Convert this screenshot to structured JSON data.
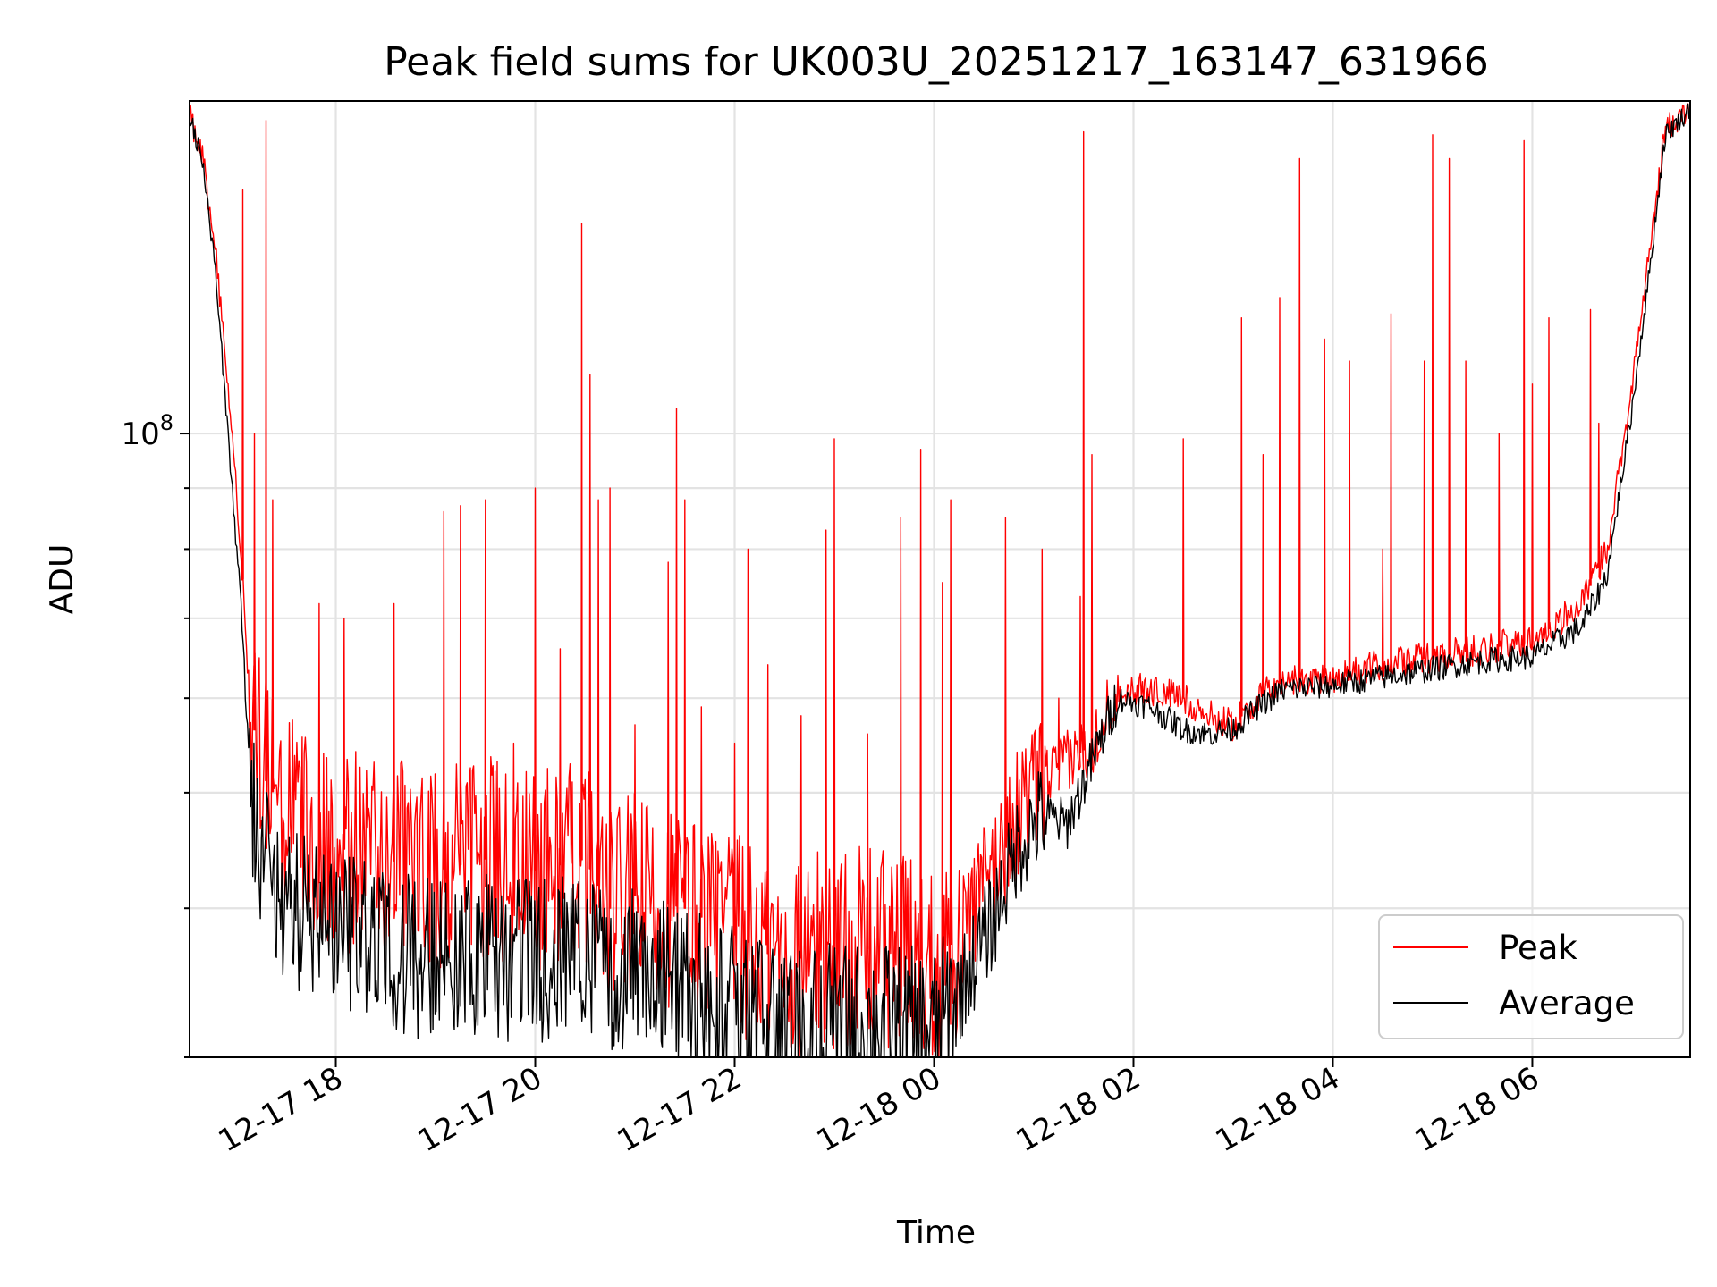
{
  "chart_data": {
    "type": "line",
    "title": "Peak field sums for UK003U_20251217_163147_631966",
    "xlabel": "Time",
    "ylabel": "ADU",
    "y_scale": "log",
    "ylim": [
      30000000,
      190000000
    ],
    "xlim": [
      "2025-12-17 16:32",
      "2025-12-18 07:35"
    ],
    "grid": true,
    "legend": "lower-right",
    "x_ticks": [
      {
        "t": "2025-12-17 18:00",
        "label": "12-17 18"
      },
      {
        "t": "2025-12-17 20:00",
        "label": "12-17 20"
      },
      {
        "t": "2025-12-17 22:00",
        "label": "12-17 22"
      },
      {
        "t": "2025-12-18 00:00",
        "label": "12-18 00"
      },
      {
        "t": "2025-12-18 02:00",
        "label": "12-18 02"
      },
      {
        "t": "2025-12-18 04:00",
        "label": "12-18 04"
      },
      {
        "t": "2025-12-18 06:00",
        "label": "12-18 06"
      }
    ],
    "y_major_ticks": [
      {
        "value": 100000000,
        "base": "10",
        "exp": "8"
      }
    ],
    "y_minor_ticks": [
      30000000,
      40000000,
      50000000,
      60000000,
      70000000,
      80000000,
      90000000,
      200000000
    ],
    "series": [
      {
        "name": "Peak",
        "color": "#ff0000",
        "baseline": [
          [
            "2025-12-17 16:32",
            185000000
          ],
          [
            "2025-12-17 16:40",
            170000000
          ],
          [
            "2025-12-17 16:48",
            140000000
          ],
          [
            "2025-12-17 16:55",
            110000000
          ],
          [
            "2025-12-17 17:03",
            80000000
          ],
          [
            "2025-12-17 17:08",
            60000000
          ],
          [
            "2025-12-17 17:15",
            52000000
          ],
          [
            "2025-12-17 17:30",
            48000000
          ],
          [
            "2025-12-17 18:00",
            45000000
          ],
          [
            "2025-12-17 18:30",
            44000000
          ],
          [
            "2025-12-17 19:00",
            43000000
          ],
          [
            "2025-12-17 19:30",
            44000000
          ],
          [
            "2025-12-17 20:00",
            43000000
          ],
          [
            "2025-12-17 20:30",
            44000000
          ],
          [
            "2025-12-17 20:45",
            40000000
          ],
          [
            "2025-12-17 21:00",
            41000000
          ],
          [
            "2025-12-17 21:30",
            40000000
          ],
          [
            "2025-12-17 22:00",
            38000000
          ],
          [
            "2025-12-17 22:30",
            36000000
          ],
          [
            "2025-12-17 23:00",
            37000000
          ],
          [
            "2025-12-17 23:30",
            37000000
          ],
          [
            "2025-12-18 00:00",
            36000000
          ],
          [
            "2025-12-18 00:15",
            38000000
          ],
          [
            "2025-12-18 00:35",
            43000000
          ],
          [
            "2025-12-18 00:50",
            48000000
          ],
          [
            "2025-12-18 01:05",
            51000000
          ],
          [
            "2025-12-18 01:20",
            53000000
          ],
          [
            "2025-12-18 01:35",
            55000000
          ],
          [
            "2025-12-18 01:50",
            61000000
          ],
          [
            "2025-12-18 02:10",
            61000000
          ],
          [
            "2025-12-18 02:30",
            60000000
          ],
          [
            "2025-12-18 02:45",
            58000000
          ],
          [
            "2025-12-18 03:00",
            57000000
          ],
          [
            "2025-12-18 03:15",
            60000000
          ],
          [
            "2025-12-18 03:30",
            62000000
          ],
          [
            "2025-12-18 04:00",
            62500000
          ],
          [
            "2025-12-18 04:30",
            64000000
          ],
          [
            "2025-12-18 05:00",
            65000000
          ],
          [
            "2025-12-18 05:30",
            66000000
          ],
          [
            "2025-12-18 06:00",
            67000000
          ],
          [
            "2025-12-18 06:30",
            72000000
          ],
          [
            "2025-12-18 06:45",
            80000000
          ],
          [
            "2025-12-18 07:00",
            110000000
          ],
          [
            "2025-12-18 07:10",
            140000000
          ],
          [
            "2025-12-18 07:20",
            180000000
          ],
          [
            "2025-12-18 07:35",
            187000000
          ]
        ],
        "spikes": [
          [
            "2025-12-17 17:04",
            160000000
          ],
          [
            "2025-12-17 17:11",
            100000000
          ],
          [
            "2025-12-17 17:18",
            183000000
          ],
          [
            "2025-12-17 17:22",
            88000000
          ],
          [
            "2025-12-17 17:50",
            72000000
          ],
          [
            "2025-12-17 18:05",
            70000000
          ],
          [
            "2025-12-17 18:35",
            72000000
          ],
          [
            "2025-12-17 19:05",
            86000000
          ],
          [
            "2025-12-17 19:15",
            87000000
          ],
          [
            "2025-12-17 19:30",
            88000000
          ],
          [
            "2025-12-17 19:47",
            55000000
          ],
          [
            "2025-12-17 20:00",
            90000000
          ],
          [
            "2025-12-17 20:15",
            66000000
          ],
          [
            "2025-12-17 20:28",
            150000000
          ],
          [
            "2025-12-17 20:33",
            112000000
          ],
          [
            "2025-12-17 20:38",
            88000000
          ],
          [
            "2025-12-17 20:45",
            90000000
          ],
          [
            "2025-12-17 21:00",
            57000000
          ],
          [
            "2025-12-17 21:20",
            78000000
          ],
          [
            "2025-12-17 21:25",
            105000000
          ],
          [
            "2025-12-17 21:30",
            88000000
          ],
          [
            "2025-12-17 21:40",
            59000000
          ],
          [
            "2025-12-17 22:00",
            55000000
          ],
          [
            "2025-12-17 22:08",
            80000000
          ],
          [
            "2025-12-17 22:20",
            64000000
          ],
          [
            "2025-12-17 22:40",
            58000000
          ],
          [
            "2025-12-17 22:55",
            83000000
          ],
          [
            "2025-12-17 23:00",
            99000000
          ],
          [
            "2025-12-17 23:20",
            56000000
          ],
          [
            "2025-12-17 23:40",
            85000000
          ],
          [
            "2025-12-17 23:52",
            97000000
          ],
          [
            "2025-12-18 00:05",
            75000000
          ],
          [
            "2025-12-18 00:10",
            88000000
          ],
          [
            "2025-12-18 00:43",
            85000000
          ],
          [
            "2025-12-18 01:05",
            80000000
          ],
          [
            "2025-12-18 01:15",
            60000000
          ],
          [
            "2025-12-18 01:28",
            73000000
          ],
          [
            "2025-12-18 01:30",
            179000000
          ],
          [
            "2025-12-18 01:35",
            96000000
          ],
          [
            "2025-12-18 02:30",
            99000000
          ],
          [
            "2025-12-18 03:05",
            125000000
          ],
          [
            "2025-12-18 03:18",
            96000000
          ],
          [
            "2025-12-18 03:28",
            130000000
          ],
          [
            "2025-12-18 03:40",
            170000000
          ],
          [
            "2025-12-18 03:55",
            120000000
          ],
          [
            "2025-12-18 04:10",
            115000000
          ],
          [
            "2025-12-18 04:30",
            80000000
          ],
          [
            "2025-12-18 04:35",
            126000000
          ],
          [
            "2025-12-18 04:55",
            115000000
          ],
          [
            "2025-12-18 05:00",
            178000000
          ],
          [
            "2025-12-18 05:10",
            170000000
          ],
          [
            "2025-12-18 05:20",
            115000000
          ],
          [
            "2025-12-18 05:40",
            100000000
          ],
          [
            "2025-12-18 05:55",
            176000000
          ],
          [
            "2025-12-18 06:00",
            110000000
          ],
          [
            "2025-12-18 06:10",
            125000000
          ],
          [
            "2025-12-18 06:35",
            127000000
          ],
          [
            "2025-12-18 06:40",
            102000000
          ]
        ]
      },
      {
        "name": "Average",
        "color": "#000000",
        "baseline": [
          [
            "2025-12-17 16:32",
            185000000
          ],
          [
            "2025-12-17 16:40",
            168000000
          ],
          [
            "2025-12-17 16:48",
            135000000
          ],
          [
            "2025-12-17 16:55",
            100000000
          ],
          [
            "2025-12-17 17:03",
            72000000
          ],
          [
            "2025-12-17 17:08",
            52000000
          ],
          [
            "2025-12-17 17:15",
            44000000
          ],
          [
            "2025-12-17 17:30",
            40000000
          ],
          [
            "2025-12-17 18:00",
            38000000
          ],
          [
            "2025-12-17 18:30",
            37000000
          ],
          [
            "2025-12-17 19:00",
            36000000
          ],
          [
            "2025-12-17 19:30",
            36500000
          ],
          [
            "2025-12-17 20:00",
            36000000
          ],
          [
            "2025-12-17 20:30",
            37000000
          ],
          [
            "2025-12-17 20:45",
            35000000
          ],
          [
            "2025-12-17 21:00",
            35500000
          ],
          [
            "2025-12-17 21:30",
            34500000
          ],
          [
            "2025-12-17 22:00",
            33000000
          ],
          [
            "2025-12-17 22:30",
            31500000
          ],
          [
            "2025-12-17 23:00",
            32000000
          ],
          [
            "2025-12-17 23:30",
            32000000
          ],
          [
            "2025-12-18 00:00",
            31500000
          ],
          [
            "2025-12-18 00:15",
            34000000
          ],
          [
            "2025-12-18 00:35",
            39000000
          ],
          [
            "2025-12-18 00:50",
            45000000
          ],
          [
            "2025-12-18 01:05",
            48000000
          ],
          [
            "2025-12-18 01:20",
            47000000
          ],
          [
            "2025-12-18 01:35",
            53000000
          ],
          [
            "2025-12-18 01:50",
            60000000
          ],
          [
            "2025-12-18 02:10",
            59000000
          ],
          [
            "2025-12-18 02:30",
            56500000
          ],
          [
            "2025-12-18 02:45",
            56000000
          ],
          [
            "2025-12-18 03:00",
            56500000
          ],
          [
            "2025-12-18 03:15",
            59000000
          ],
          [
            "2025-12-18 03:30",
            61000000
          ],
          [
            "2025-12-18 04:00",
            61500000
          ],
          [
            "2025-12-18 04:30",
            62500000
          ],
          [
            "2025-12-18 05:00",
            63500000
          ],
          [
            "2025-12-18 05:30",
            64500000
          ],
          [
            "2025-12-18 06:00",
            65000000
          ],
          [
            "2025-12-18 06:30",
            69000000
          ],
          [
            "2025-12-18 06:45",
            76000000
          ],
          [
            "2025-12-18 07:00",
            105000000
          ],
          [
            "2025-12-18 07:10",
            135000000
          ],
          [
            "2025-12-18 07:20",
            178000000
          ],
          [
            "2025-12-18 07:35",
            187000000
          ]
        ],
        "spikes": []
      }
    ]
  }
}
